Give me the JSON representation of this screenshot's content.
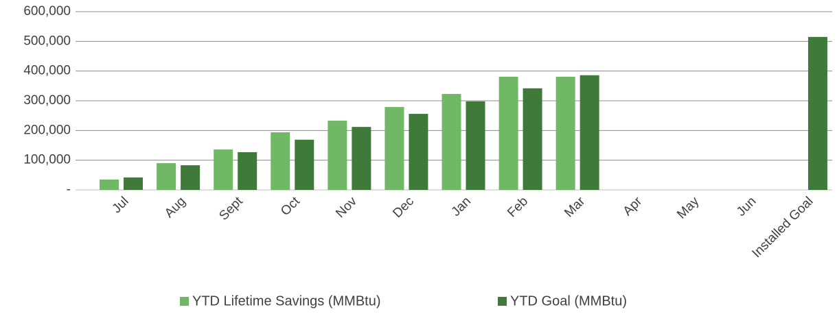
{
  "chart_data": {
    "type": "bar",
    "categories": [
      "Jul",
      "Aug",
      "Sept",
      "Oct",
      "Nov",
      "Dec",
      "Jan",
      "Feb",
      "Mar",
      "Apr",
      "May",
      "Jun",
      "Installed Goal"
    ],
    "series": [
      {
        "name": "YTD Lifetime Savings (MMBtu)",
        "color": "#70b865",
        "values": [
          35000,
          90000,
          136000,
          194000,
          233000,
          279000,
          323000,
          381000,
          381000,
          null,
          null,
          null,
          null
        ]
      },
      {
        "name": "YTD Goal (MMBtu)",
        "color": "#3f7a3a",
        "values": [
          42000,
          83000,
          127000,
          169000,
          212000,
          256000,
          298000,
          342000,
          386000,
          null,
          null,
          null,
          515000
        ]
      }
    ],
    "ylim": [
      0,
      600000
    ],
    "yticks": [
      {
        "value": 0,
        "label": "-"
      },
      {
        "value": 100000,
        "label": "100,000"
      },
      {
        "value": 200000,
        "label": "200,000"
      },
      {
        "value": 300000,
        "label": "300,000"
      },
      {
        "value": 400000,
        "label": "400,000"
      },
      {
        "value": 500000,
        "label": "500,000"
      },
      {
        "value": 600000,
        "label": "600,000"
      }
    ],
    "grid": true,
    "legend": "bottom"
  }
}
